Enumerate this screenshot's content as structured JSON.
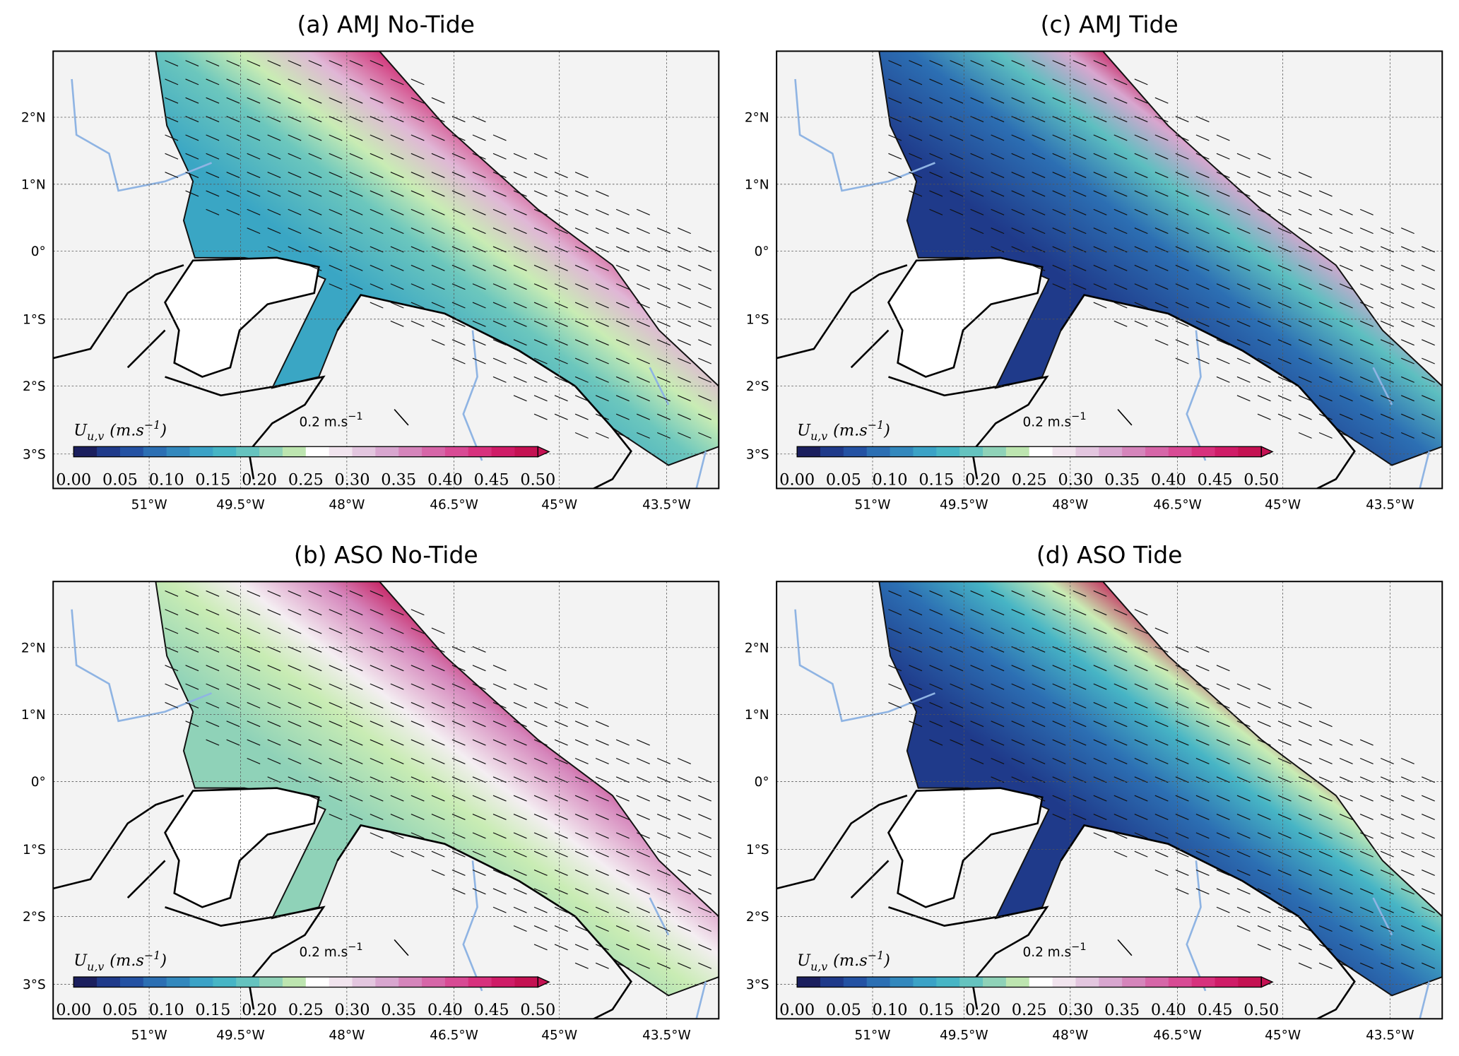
{
  "panels": [
    {
      "title": "(a) AMJ No-Tide"
    },
    {
      "title": "(c) AMJ Tide"
    },
    {
      "title": "(b) ASO No-Tide"
    },
    {
      "title": "(d) ASO Tide"
    }
  ],
  "lat_labels": [
    "2°N",
    "1°N",
    "0°",
    "1°S",
    "2°S",
    "3°S"
  ],
  "lon_labels": [
    "51°W",
    "49.5°W",
    "48°W",
    "46.5°W",
    "45°W",
    "43.5°W"
  ],
  "colorbar": {
    "ticks": [
      "0.00",
      "0.05",
      "0.10",
      "0.15",
      "0.20",
      "0.25",
      "0.30",
      "0.35",
      "0.40",
      "0.45",
      "0.50"
    ],
    "units": {
      "symbol": "U",
      "subscript": "u,v",
      "unit": "(m.s",
      "exponent": "−1",
      "close": ")"
    }
  },
  "scale_arrow": {
    "label": "0.2 m.s",
    "exponent": "−1"
  }
}
